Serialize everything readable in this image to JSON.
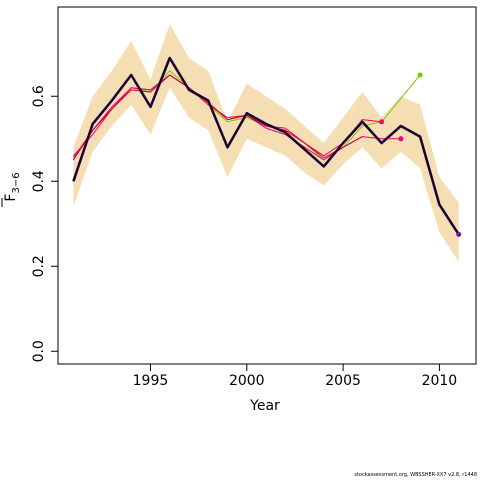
{
  "chart_data": {
    "type": "line",
    "xlabel": "Year",
    "ylabel_main": "F",
    "ylabel_sub": "3−6",
    "xlim": [
      1990.2,
      2011.9
    ],
    "ylim": [
      -0.03,
      0.81
    ],
    "xticks": [
      1995,
      2000,
      2005,
      2010
    ],
    "yticks": [
      0.0,
      0.2,
      0.4,
      0.6
    ],
    "ytick_labels": [
      "0.0",
      "0.2",
      "0.4",
      "0.6"
    ],
    "grid": false,
    "legend": "none",
    "band": {
      "x": [
        1991,
        1992,
        1993,
        1994,
        1995,
        1996,
        1997,
        1998,
        1999,
        2000,
        2001,
        2002,
        2003,
        2004,
        2005,
        2006,
        2007,
        2008,
        2009,
        2010,
        2011
      ],
      "upper": [
        0.48,
        0.6,
        0.66,
        0.73,
        0.64,
        0.77,
        0.69,
        0.66,
        0.54,
        0.63,
        0.6,
        0.57,
        0.53,
        0.49,
        0.55,
        0.61,
        0.55,
        0.6,
        0.58,
        0.41,
        0.35
      ],
      "lower": [
        0.34,
        0.47,
        0.53,
        0.58,
        0.51,
        0.62,
        0.55,
        0.52,
        0.41,
        0.5,
        0.48,
        0.46,
        0.42,
        0.39,
        0.44,
        0.48,
        0.43,
        0.47,
        0.43,
        0.28,
        0.21
      ],
      "color": "#f5deb3"
    },
    "series": [
      {
        "color": "#7cc800",
        "width": 1,
        "x": [
          1991,
          1992,
          1993,
          1994,
          1995,
          1996,
          1997,
          1998,
          1999,
          2000,
          2001,
          2002,
          2003,
          2004,
          2005,
          2006,
          2007,
          2009
        ],
        "y": [
          0.45,
          0.52,
          0.57,
          0.62,
          0.61,
          0.66,
          0.62,
          0.58,
          0.54,
          0.55,
          0.53,
          0.52,
          0.49,
          0.45,
          0.48,
          0.53,
          0.54,
          0.65
        ],
        "end_marker": true
      },
      {
        "color": "#ff0055",
        "width": 1,
        "x": [
          1991,
          1992,
          1993,
          1994,
          1995,
          1996,
          1997,
          1998,
          1999,
          2000,
          2001,
          2002,
          2003,
          2004,
          2005,
          2006,
          2007
        ],
        "y": [
          0.455,
          0.52,
          0.575,
          0.62,
          0.615,
          0.65,
          0.62,
          0.58,
          0.55,
          0.555,
          0.53,
          0.525,
          0.49,
          0.46,
          0.49,
          0.545,
          0.54
        ],
        "end_marker": true
      },
      {
        "color": "#e6007e",
        "width": 1,
        "x": [
          1991,
          1992,
          1993,
          1994,
          1995,
          1996,
          1997,
          1998,
          1999,
          2000,
          2001,
          2002,
          2003,
          2004,
          2005,
          2006,
          2007,
          2008
        ],
        "y": [
          0.46,
          0.51,
          0.57,
          0.62,
          0.615,
          0.65,
          0.62,
          0.585,
          0.545,
          0.555,
          0.525,
          0.51,
          0.48,
          0.45,
          0.48,
          0.505,
          0.5,
          0.5
        ],
        "end_marker": true
      },
      {
        "color": "#c8003c",
        "width": 1,
        "x": [
          1991,
          1992,
          1993,
          1994,
          1995,
          1996,
          1997,
          1998,
          1999,
          2000,
          2001,
          2002,
          2003,
          2004,
          2005,
          2006
        ],
        "y": [
          0.45,
          0.52,
          0.57,
          0.615,
          0.61,
          0.65,
          0.62,
          0.585,
          0.545,
          0.555,
          0.53,
          0.52,
          0.49,
          0.455,
          0.48,
          0.505
        ],
        "end_marker": false
      },
      {
        "color": "#1a0030",
        "width": 2.5,
        "x": [
          1991,
          1992,
          1993,
          1994,
          1995,
          1996,
          1997,
          1998,
          1999,
          2000,
          2001,
          2002,
          2003,
          2004,
          2005,
          2006,
          2007,
          2008,
          2009,
          2010,
          2011
        ],
        "y": [
          0.4,
          0.535,
          0.59,
          0.65,
          0.575,
          0.69,
          0.615,
          0.59,
          0.48,
          0.56,
          0.535,
          0.515,
          0.475,
          0.435,
          0.49,
          0.54,
          0.49,
          0.53,
          0.505,
          0.345,
          0.275
        ],
        "end_marker": true,
        "end_color": "#6a1aa0"
      }
    ]
  },
  "footer": "stockassessment.org, WBSSHER-XX7 v2.8, r1448"
}
